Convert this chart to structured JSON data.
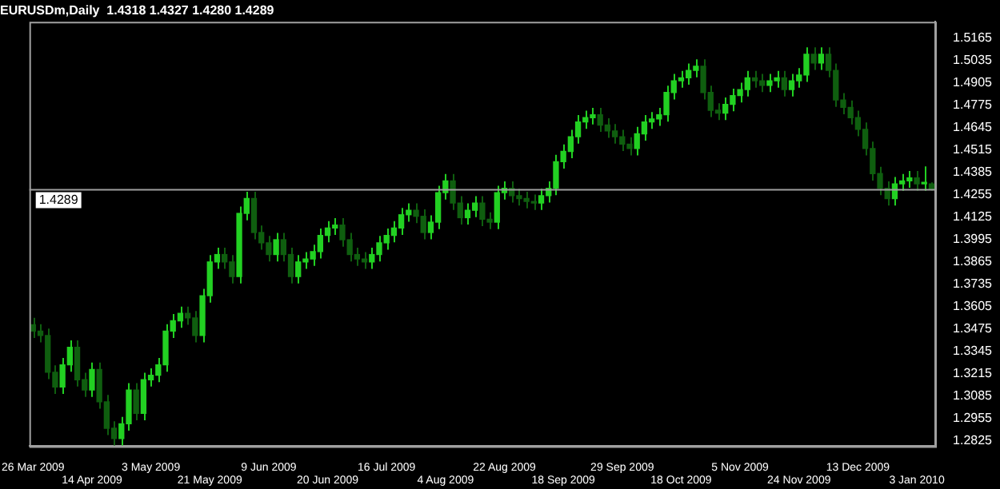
{
  "chart_data": {
    "type": "candlestick",
    "title": "EURUSDm,Daily  1.4318 1.4327 1.4280 1.4289",
    "categories": [
      "26 Mar 2009",
      null,
      null,
      null,
      null,
      null,
      null,
      null,
      "14 Apr 2009",
      null,
      null,
      null,
      null,
      null,
      null,
      null,
      "3 May 2009",
      null,
      null,
      null,
      null,
      null,
      null,
      null,
      "21 May 2009",
      null,
      null,
      null,
      null,
      null,
      null,
      null,
      "9 Jun 2009",
      null,
      null,
      null,
      null,
      null,
      null,
      null,
      "20 Jun 2009",
      null,
      null,
      null,
      null,
      null,
      null,
      null,
      "16 Jul 2009",
      null,
      null,
      null,
      null,
      null,
      null,
      null,
      "4 Aug 2009",
      null,
      null,
      null,
      null,
      null,
      null,
      null,
      "22 Aug 2009",
      null,
      null,
      null,
      null,
      null,
      null,
      null,
      "18 Sep 2009",
      null,
      null,
      null,
      null,
      null,
      null,
      null,
      "29 Sep 2009",
      null,
      null,
      null,
      null,
      null,
      null,
      null,
      "18 Oct 2009",
      null,
      null,
      null,
      null,
      null,
      null,
      null,
      "5 Nov 2009",
      null,
      null,
      null,
      null,
      null,
      null,
      null,
      "24 Nov 2009",
      null,
      null,
      null,
      null,
      null,
      null,
      null,
      "13 Dec 2009",
      null,
      null,
      null,
      null,
      null,
      null,
      null,
      "3 Jan 2010",
      null,
      null
    ],
    "series": [
      {
        "colors": [
          "#0f5e0f",
          "#0f5e0f",
          "#0f5e0f",
          "#0f5e0f",
          "#22d022",
          "#22d022",
          "#0f5e0f",
          "#0f5e0f",
          "#22d022",
          "#0f5e0f",
          "#0f5e0f",
          "#0f5e0f",
          "#22d022",
          "#22d022",
          "#0f5e0f",
          "#22d022",
          "#22d022",
          "#22d022",
          "#22d022",
          "#22d022",
          "#22d022",
          "#0f5e0f",
          "#0f5e0f",
          "#22d022",
          "#22d022",
          "#22d022",
          "#0f5e0f",
          "#0f5e0f",
          "#22d022",
          "#22d022",
          "#0f5e0f",
          "#0f5e0f",
          "#0f5e0f",
          "#22d022",
          "#0f5e0f",
          "#0f5e0f",
          "#22d022",
          "#22d022",
          "#22d022",
          "#22d022",
          "#22d022",
          "#22d022",
          "#0f5e0f",
          "#0f5e0f",
          "#0f5e0f",
          "#0f5e0f",
          "#22d022",
          "#22d022",
          "#22d022",
          "#22d022",
          "#22d022",
          "#22d022",
          "#0f5e0f",
          "#0f5e0f",
          "#22d022",
          "#22d022",
          "#22d022",
          "#0f5e0f",
          "#0f5e0f",
          "#22d022",
          "#22d022",
          "#0f5e0f",
          "#0f5e0f",
          "#22d022",
          "#22d022",
          "#0f5e0f",
          "#0f5e0f",
          "#0f5e0f",
          "#0f5e0f",
          "#22d022",
          "#22d022",
          "#22d022",
          "#22d022",
          "#22d022",
          "#22d022",
          "#22d022",
          "#22d022",
          "#0f5e0f",
          "#0f5e0f",
          "#0f5e0f",
          "#0f5e0f",
          "#0f5e0f",
          "#22d022",
          "#22d022",
          "#22d022",
          "#22d022",
          "#22d022",
          "#22d022",
          "#22d022",
          "#22d022",
          "#22d022",
          "#0f5e0f",
          "#0f5e0f",
          "#0f5e0f",
          "#22d022",
          "#22d022",
          "#22d022",
          "#22d022",
          "#0f5e0f",
          "#0f5e0f",
          "#22d022",
          "#22d022",
          "#0f5e0f",
          "#22d022",
          "#22d022",
          "#22d022",
          "#0f5e0f",
          "#22d022",
          "#0f5e0f",
          "#0f5e0f",
          "#0f5e0f",
          "#0f5e0f",
          "#0f5e0f",
          "#0f5e0f",
          "#0f5e0f",
          "#0f5e0f",
          "#0f5e0f",
          "#22d022",
          "#22d022",
          "#22d022",
          "#0f5e0f",
          "#22d022",
          "#0f5e0f"
        ],
        "ohlc": [
          [
            1.35,
            1.354,
            1.3423,
            1.3463
          ],
          [
            1.3463,
            1.3503,
            1.3398,
            1.3438
          ],
          [
            1.3438,
            1.3478,
            1.3184,
            1.3224
          ],
          [
            1.3224,
            1.3264,
            1.3099,
            1.3139
          ],
          [
            1.3139,
            1.3307,
            1.3099,
            1.3267
          ],
          [
            1.3267,
            1.3409,
            1.3227,
            1.3369
          ],
          [
            1.3369,
            1.3409,
            1.3141,
            1.3181
          ],
          [
            1.3181,
            1.3221,
            1.3081,
            1.3121
          ],
          [
            1.3121,
            1.3281,
            1.3081,
            1.3241
          ],
          [
            1.3241,
            1.3281,
            1.3013,
            1.3053
          ],
          [
            1.3053,
            1.3093,
            1.2859,
            1.2899
          ],
          [
            1.2899,
            1.2939,
            1.2799,
            1.2839
          ],
          [
            1.2839,
            1.2965,
            1.2799,
            1.2925
          ],
          [
            1.2925,
            1.3161,
            1.2885,
            1.3121
          ],
          [
            1.3121,
            1.3161,
            1.2945,
            1.2985
          ],
          [
            1.2985,
            1.3221,
            1.2945,
            1.3181
          ],
          [
            1.3181,
            1.3247,
            1.3141,
            1.3207
          ],
          [
            1.3207,
            1.3307,
            1.3167,
            1.3267
          ],
          [
            1.3267,
            1.3503,
            1.3227,
            1.3463
          ],
          [
            1.3463,
            1.3563,
            1.3423,
            1.3523
          ],
          [
            1.3523,
            1.3606,
            1.3483,
            1.3566
          ],
          [
            1.3566,
            1.3606,
            1.35,
            1.354
          ],
          [
            1.354,
            1.358,
            1.3398,
            1.3438
          ],
          [
            1.3438,
            1.3709,
            1.3398,
            1.3669
          ],
          [
            1.3669,
            1.3905,
            1.3629,
            1.3865
          ],
          [
            1.3865,
            1.3948,
            1.3825,
            1.3908
          ],
          [
            1.3908,
            1.3948,
            1.3825,
            1.3865
          ],
          [
            1.3865,
            1.3905,
            1.374,
            1.378
          ],
          [
            1.378,
            1.4187,
            1.374,
            1.4147
          ],
          [
            1.4147,
            1.4273,
            1.4107,
            1.4233
          ],
          [
            1.4233,
            1.4273,
            1.3996,
            1.4036
          ],
          [
            1.4036,
            1.4076,
            1.3936,
            1.3976
          ],
          [
            1.3976,
            1.4016,
            1.3868,
            1.3908
          ],
          [
            1.3908,
            1.4034,
            1.3868,
            1.3994
          ],
          [
            1.3994,
            1.4034,
            1.3868,
            1.3908
          ],
          [
            1.3908,
            1.3948,
            1.374,
            1.378
          ],
          [
            1.378,
            1.3905,
            1.374,
            1.3865
          ],
          [
            1.3865,
            1.3922,
            1.3825,
            1.3882
          ],
          [
            1.3882,
            1.3965,
            1.3842,
            1.3925
          ],
          [
            1.3925,
            1.4059,
            1.3885,
            1.4019
          ],
          [
            1.4019,
            1.4102,
            1.3979,
            1.4062
          ],
          [
            1.4062,
            1.4119,
            1.4022,
            1.4079
          ],
          [
            1.4079,
            1.4119,
            1.3954,
            1.3994
          ],
          [
            1.3994,
            1.4034,
            1.3868,
            1.3908
          ],
          [
            1.3908,
            1.3948,
            1.3842,
            1.3882
          ],
          [
            1.3882,
            1.3922,
            1.3825,
            1.3865
          ],
          [
            1.3865,
            1.3948,
            1.3825,
            1.3908
          ],
          [
            1.3908,
            1.4016,
            1.3868,
            1.3976
          ],
          [
            1.3976,
            1.4059,
            1.3936,
            1.4019
          ],
          [
            1.4019,
            1.4102,
            1.3979,
            1.4062
          ],
          [
            1.4062,
            1.4179,
            1.4022,
            1.4139
          ],
          [
            1.4139,
            1.4205,
            1.4099,
            1.4165
          ],
          [
            1.4165,
            1.4205,
            1.409,
            1.413
          ],
          [
            1.413,
            1.417,
            1.3996,
            1.4036
          ],
          [
            1.4036,
            1.4136,
            1.3996,
            1.4096
          ],
          [
            1.4096,
            1.4307,
            1.4056,
            1.4267
          ],
          [
            1.4267,
            1.4376,
            1.4227,
            1.4336
          ],
          [
            1.4336,
            1.4376,
            1.4167,
            1.4207
          ],
          [
            1.4207,
            1.4247,
            1.4082,
            1.4122
          ],
          [
            1.4122,
            1.4205,
            1.4082,
            1.4165
          ],
          [
            1.4165,
            1.4247,
            1.4125,
            1.4207
          ],
          [
            1.4207,
            1.4247,
            1.4073,
            1.4113
          ],
          [
            1.4113,
            1.4153,
            1.4056,
            1.4096
          ],
          [
            1.4096,
            1.4307,
            1.4056,
            1.4267
          ],
          [
            1.4267,
            1.4333,
            1.4227,
            1.4293
          ],
          [
            1.4293,
            1.4333,
            1.421,
            1.425
          ],
          [
            1.425,
            1.429,
            1.4193,
            1.4233
          ],
          [
            1.4233,
            1.4273,
            1.4176,
            1.4216
          ],
          [
            1.4216,
            1.4256,
            1.4167,
            1.4207
          ],
          [
            1.4207,
            1.429,
            1.4167,
            1.425
          ],
          [
            1.425,
            1.4333,
            1.421,
            1.4293
          ],
          [
            1.4293,
            1.4487,
            1.4253,
            1.4447
          ],
          [
            1.4447,
            1.4547,
            1.4407,
            1.4507
          ],
          [
            1.4507,
            1.4632,
            1.4467,
            1.4592
          ],
          [
            1.4592,
            1.4718,
            1.4552,
            1.4678
          ],
          [
            1.4678,
            1.4743,
            1.4638,
            1.4703
          ],
          [
            1.4703,
            1.476,
            1.4663,
            1.472
          ],
          [
            1.472,
            1.476,
            1.462,
            1.466
          ],
          [
            1.466,
            1.47,
            1.4586,
            1.4626
          ],
          [
            1.4626,
            1.4666,
            1.4552,
            1.4592
          ],
          [
            1.4592,
            1.4632,
            1.4509,
            1.4549
          ],
          [
            1.4549,
            1.4589,
            1.4484,
            1.4524
          ],
          [
            1.4524,
            1.4649,
            1.4484,
            1.4609
          ],
          [
            1.4609,
            1.4718,
            1.4569,
            1.4678
          ],
          [
            1.4678,
            1.4735,
            1.4638,
            1.4695
          ],
          [
            1.4695,
            1.476,
            1.4655,
            1.472
          ],
          [
            1.472,
            1.4889,
            1.468,
            1.4849
          ],
          [
            1.4849,
            1.4957,
            1.4809,
            1.4917
          ],
          [
            1.4917,
            1.4974,
            1.4877,
            1.4934
          ],
          [
            1.4934,
            1.5017,
            1.4894,
            1.4977
          ],
          [
            1.4977,
            1.5042,
            1.4937,
            1.5002
          ],
          [
            1.5002,
            1.5042,
            1.4809,
            1.4849
          ],
          [
            1.4849,
            1.4889,
            1.4706,
            1.4746
          ],
          [
            1.4746,
            1.4786,
            1.4689,
            1.4729
          ],
          [
            1.4729,
            1.482,
            1.4689,
            1.478
          ],
          [
            1.478,
            1.4871,
            1.474,
            1.4831
          ],
          [
            1.4831,
            1.4906,
            1.4791,
            1.4866
          ],
          [
            1.4866,
            1.4974,
            1.4826,
            1.4934
          ],
          [
            1.4934,
            1.4974,
            1.4877,
            1.4917
          ],
          [
            1.4917,
            1.4957,
            1.4851,
            1.4891
          ],
          [
            1.4891,
            1.4957,
            1.4851,
            1.4917
          ],
          [
            1.4917,
            1.4974,
            1.4877,
            1.4934
          ],
          [
            1.4934,
            1.4974,
            1.4826,
            1.4866
          ],
          [
            1.4866,
            1.4957,
            1.4826,
            1.4917
          ],
          [
            1.4917,
            1.4991,
            1.4877,
            1.4951
          ],
          [
            1.4951,
            1.5111,
            1.4911,
            1.5071
          ],
          [
            1.5071,
            1.5111,
            1.498,
            1.502
          ],
          [
            1.502,
            1.5111,
            1.498,
            1.5071
          ],
          [
            1.5071,
            1.5111,
            1.4937,
            1.4977
          ],
          [
            1.4977,
            1.5017,
            1.4766,
            1.4806
          ],
          [
            1.4806,
            1.4846,
            1.4723,
            1.4763
          ],
          [
            1.4763,
            1.4803,
            1.4663,
            1.4703
          ],
          [
            1.4703,
            1.4743,
            1.4595,
            1.4635
          ],
          [
            1.4635,
            1.4675,
            1.4484,
            1.4524
          ],
          [
            1.4524,
            1.4564,
            1.4338,
            1.4378
          ],
          [
            1.4378,
            1.4418,
            1.4253,
            1.4293
          ],
          [
            1.4293,
            1.4333,
            1.4193,
            1.4233
          ],
          [
            1.4233,
            1.4358,
            1.4193,
            1.4318
          ],
          [
            1.4318,
            1.4376,
            1.4278,
            1.4336
          ],
          [
            1.4336,
            1.4393,
            1.4296,
            1.4353
          ],
          [
            1.4353,
            1.4393,
            1.4278,
            1.4318
          ],
          [
            1.4318,
            1.442,
            1.4278,
            1.4318
          ],
          [
            1.4318,
            1.4327,
            1.428,
            1.4289
          ]
        ]
      }
    ],
    "ylim": [
      1.2795,
      1.526
    ],
    "yticks": [
      1.5165,
      1.5035,
      1.4905,
      1.4775,
      1.4645,
      1.4515,
      1.4385,
      1.4255,
      1.4125,
      1.3995,
      1.3865,
      1.3735,
      1.3605,
      1.3475,
      1.3345,
      1.3215,
      1.3085,
      1.2955,
      1.2825
    ],
    "ref_lines": [
      {
        "axis": "y",
        "value": 1.4289,
        "label": "1.4289",
        "color": "#a0a0a0"
      }
    ],
    "grid": false,
    "legend": false
  }
}
